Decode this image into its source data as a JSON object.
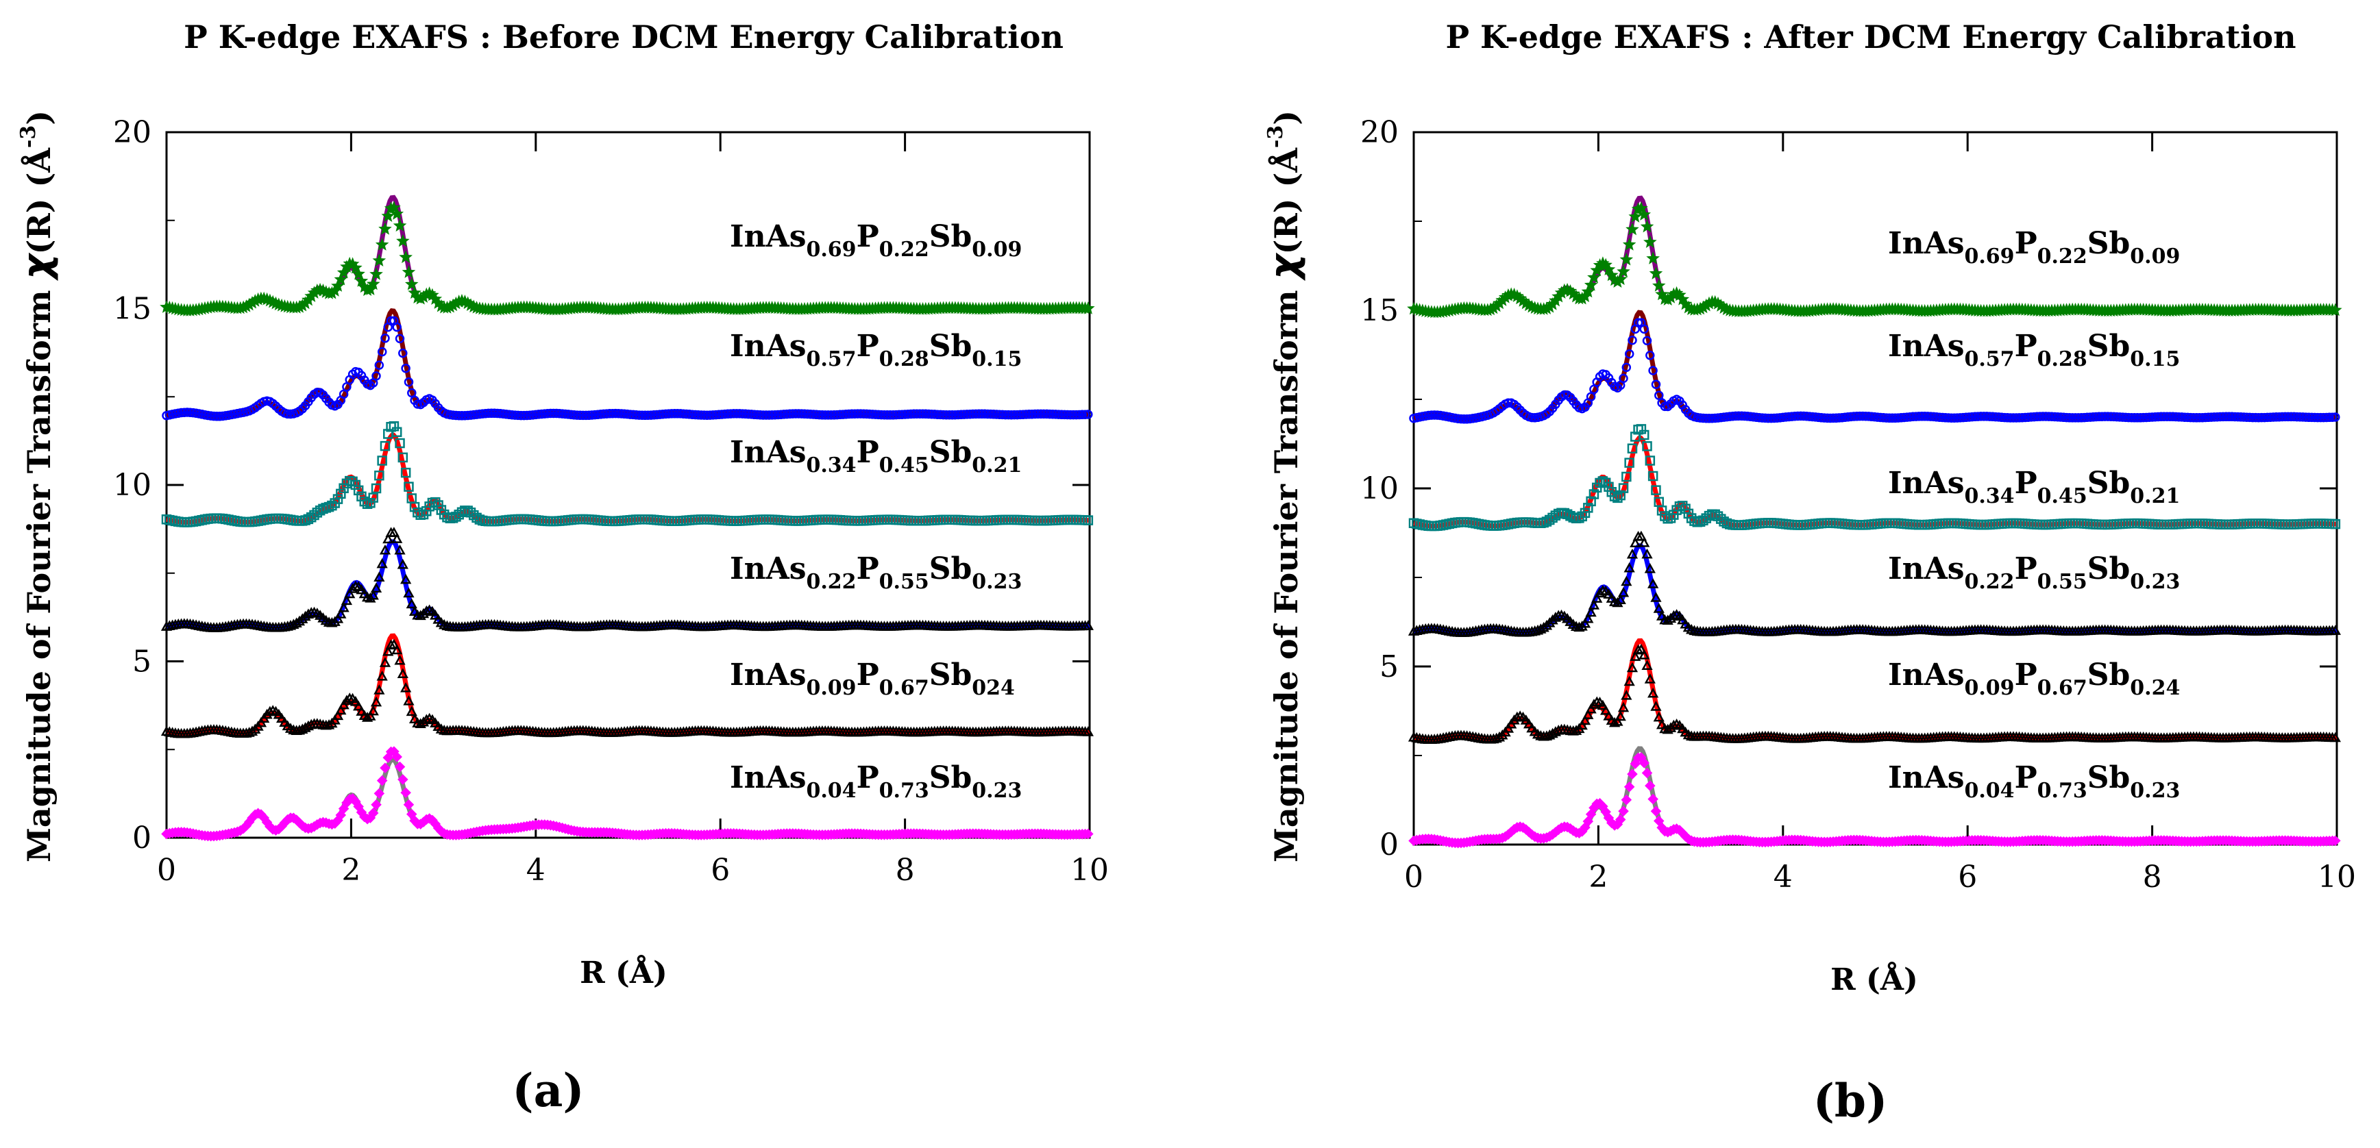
{
  "chart_data": [
    {
      "panel_id": "a",
      "type": "line",
      "title": "P K-edge EXAFS : Before DCM Energy Calibration",
      "xlabel": "R (Å)",
      "ylabel_prefix": "Magnitude of Fourier Transform ",
      "ylabel_chi": "χ",
      "ylabel_mid": "(R) (",
      "ylabel_unit": "Å",
      "ylabel_exp": "-3",
      "ylabel_suffix": ")",
      "panel_label": "(a)",
      "xlim": [
        0,
        10
      ],
      "ylim": [
        0,
        20
      ],
      "xticks": [
        0,
        2,
        4,
        6,
        8,
        10
      ],
      "yticks": [
        0,
        5,
        10,
        15,
        20
      ],
      "series": [
        {
          "name": "InAs0.69P0.22Sb0.09",
          "label": {
            "p1": "InAs",
            "s1": "0.69",
            "p2": "P",
            "s2": "0.22",
            "p3": "Sb",
            "s3": "0.09"
          },
          "offset": 15.0,
          "fit_color": "#800080",
          "data_color": "#008000",
          "marker": "star",
          "peaks": [
            {
              "r": 1.02,
              "a": 0.3,
              "w": 0.11
            },
            {
              "r": 1.65,
              "a": 0.55,
              "w": 0.1
            },
            {
              "r": 2.0,
              "a": 1.25,
              "w": 0.11
            },
            {
              "r": 2.45,
              "a": 2.85,
              "w": 0.12
            },
            {
              "r": 2.85,
              "a": 0.45,
              "w": 0.07
            },
            {
              "r": 3.2,
              "a": 0.18,
              "w": 0.07
            }
          ]
        },
        {
          "name": "InAs0.57P0.28Sb0.15",
          "label": {
            "p1": "InAs",
            "s1": "0.57",
            "p2": "P",
            "s2": "0.28",
            "p3": "Sb",
            "s3": "0.15"
          },
          "offset": 12.0,
          "fit_color": "#800000",
          "data_color": "#0000ff",
          "marker": "circle",
          "peaks": [
            {
              "r": 1.1,
              "a": 0.4,
              "w": 0.1
            },
            {
              "r": 1.65,
              "a": 0.6,
              "w": 0.1
            },
            {
              "r": 2.05,
              "a": 1.2,
              "w": 0.11
            },
            {
              "r": 2.45,
              "a": 2.7,
              "w": 0.12
            },
            {
              "r": 2.85,
              "a": 0.4,
              "w": 0.07
            }
          ]
        },
        {
          "name": "InAs0.34P0.45Sb0.21",
          "label": {
            "p1": "InAs",
            "s1": "0.34",
            "p2": "P",
            "s2": "0.45",
            "p3": "Sb",
            "s3": "0.21"
          },
          "offset": 9.0,
          "fit_color": "#ff0000",
          "data_color": "#008080",
          "marker": "square",
          "peaks": [
            {
              "r": 1.7,
              "a": 0.3,
              "w": 0.1
            },
            {
              "r": 2.0,
              "a": 1.1,
              "w": 0.11
            },
            {
              "r": 2.45,
              "a": 2.65,
              "w": 0.12
            },
            {
              "r": 2.9,
              "a": 0.55,
              "w": 0.07
            },
            {
              "r": 3.25,
              "a": 0.25,
              "w": 0.07
            }
          ]
        },
        {
          "name": "InAs0.22P0.55Sb0.23",
          "label": {
            "p1": "InAs",
            "s1": "0.22",
            "p2": "P",
            "s2": "0.55",
            "p3": "Sb",
            "s3": "0.23"
          },
          "offset": 6.0,
          "fit_color": "#0000ff",
          "data_color": "#000000",
          "marker": "triangle",
          "peaks": [
            {
              "r": 1.6,
              "a": 0.35,
              "w": 0.1
            },
            {
              "r": 2.05,
              "a": 1.1,
              "w": 0.11
            },
            {
              "r": 2.45,
              "a": 2.7,
              "w": 0.12
            },
            {
              "r": 2.85,
              "a": 0.4,
              "w": 0.07
            }
          ]
        },
        {
          "name": "InAs0.09P0.67Sb024",
          "label": {
            "p1": "InAs",
            "s1": "0.09",
            "p2": "P",
            "s2": "0.67",
            "p3": "Sb",
            "s3": "024"
          },
          "offset": 3.0,
          "fit_color": "#ff0000",
          "data_color": "#000000",
          "marker": "triangle",
          "peaks": [
            {
              "r": 1.15,
              "a": 0.55,
              "w": 0.1
            },
            {
              "r": 1.6,
              "a": 0.25,
              "w": 0.1
            },
            {
              "r": 2.0,
              "a": 0.95,
              "w": 0.11
            },
            {
              "r": 2.45,
              "a": 2.45,
              "w": 0.12
            },
            {
              "r": 2.85,
              "a": 0.4,
              "w": 0.07
            }
          ]
        },
        {
          "name": "InAs0.04P0.73Sb0.23",
          "label": {
            "p1": "InAs",
            "s1": "0.04",
            "p2": "P",
            "s2": "0.73",
            "p3": "Sb",
            "s3": "0.23"
          },
          "offset": 0.1,
          "fit_color": "#808080",
          "data_color": "#ff00ff",
          "marker": "diamond",
          "peaks": [
            {
              "r": 1.0,
              "a": 0.6,
              "w": 0.09
            },
            {
              "r": 1.35,
              "a": 0.45,
              "w": 0.09
            },
            {
              "r": 1.7,
              "a": 0.35,
              "w": 0.09
            },
            {
              "r": 2.0,
              "a": 1.0,
              "w": 0.1
            },
            {
              "r": 2.45,
              "a": 2.4,
              "w": 0.12
            },
            {
              "r": 2.85,
              "a": 0.4,
              "w": 0.07
            },
            {
              "r": 4.0,
              "a": 0.25,
              "w": 0.35
            }
          ]
        }
      ]
    },
    {
      "panel_id": "b",
      "type": "line",
      "title": "P K-edge EXAFS : After DCM Energy Calibration",
      "xlabel": "R (Å)",
      "ylabel_prefix": "Magnitude of Fourier Transform ",
      "ylabel_chi": "χ",
      "ylabel_mid": "(R) (",
      "ylabel_unit": "Å",
      "ylabel_exp": "-3",
      "ylabel_suffix": ")",
      "panel_label": "(b)",
      "xlim": [
        0,
        10
      ],
      "ylim": [
        0,
        20
      ],
      "xticks": [
        0,
        2,
        4,
        6,
        8,
        10
      ],
      "yticks": [
        0,
        5,
        10,
        15,
        20
      ],
      "series": [
        {
          "name": "InAs0.69P0.22Sb0.09",
          "label": {
            "p1": "InAs",
            "s1": "0.69",
            "p2": "P",
            "s2": "0.22",
            "p3": "Sb",
            "s3": "0.09"
          },
          "offset": 15.0,
          "fit_color": "#800080",
          "data_color": "#008000",
          "marker": "star",
          "peaks": [
            {
              "r": 1.05,
              "a": 0.45,
              "w": 0.11
            },
            {
              "r": 1.65,
              "a": 0.6,
              "w": 0.1
            },
            {
              "r": 2.05,
              "a": 1.3,
              "w": 0.11
            },
            {
              "r": 2.45,
              "a": 2.85,
              "w": 0.12
            },
            {
              "r": 2.85,
              "a": 0.5,
              "w": 0.07
            },
            {
              "r": 3.25,
              "a": 0.2,
              "w": 0.07
            }
          ]
        },
        {
          "name": "InAs0.57P0.28Sb0.15",
          "label": {
            "p1": "InAs",
            "s1": "0.57",
            "p2": "P",
            "s2": "0.28",
            "p3": "Sb",
            "s3": "0.15"
          },
          "offset": 12.0,
          "fit_color": "#800000",
          "data_color": "#0000ff",
          "marker": "circle",
          "peaks": [
            {
              "r": 1.05,
              "a": 0.4,
              "w": 0.1
            },
            {
              "r": 1.65,
              "a": 0.6,
              "w": 0.1
            },
            {
              "r": 2.05,
              "a": 1.2,
              "w": 0.11
            },
            {
              "r": 2.45,
              "a": 2.7,
              "w": 0.12
            },
            {
              "r": 2.85,
              "a": 0.45,
              "w": 0.07
            }
          ]
        },
        {
          "name": "InAs0.34P0.45Sb0.21",
          "label": {
            "p1": "InAs",
            "s1": "0.34",
            "p2": "P",
            "s2": "0.45",
            "p3": "Sb",
            "s3": "0.21"
          },
          "offset": 9.0,
          "fit_color": "#ff0000",
          "data_color": "#008080",
          "marker": "square",
          "peaks": [
            {
              "r": 1.6,
              "a": 0.35,
              "w": 0.1
            },
            {
              "r": 2.05,
              "a": 1.2,
              "w": 0.11
            },
            {
              "r": 2.45,
              "a": 2.65,
              "w": 0.12
            },
            {
              "r": 2.9,
              "a": 0.55,
              "w": 0.07
            },
            {
              "r": 3.25,
              "a": 0.25,
              "w": 0.07
            }
          ]
        },
        {
          "name": "InAs0.22P0.55Sb0.23",
          "label": {
            "p1": "InAs",
            "s1": "0.22",
            "p2": "P",
            "s2": "0.55",
            "p3": "Sb",
            "s3": "0.23"
          },
          "offset": 6.0,
          "fit_color": "#0000ff",
          "data_color": "#000000",
          "marker": "triangle",
          "peaks": [
            {
              "r": 1.6,
              "a": 0.4,
              "w": 0.1
            },
            {
              "r": 2.05,
              "a": 1.1,
              "w": 0.11
            },
            {
              "r": 2.45,
              "a": 2.7,
              "w": 0.12
            },
            {
              "r": 2.85,
              "a": 0.4,
              "w": 0.07
            }
          ]
        },
        {
          "name": "InAs0.09P0.67Sb0.24",
          "label": {
            "p1": "InAs",
            "s1": "0.09",
            "p2": "P",
            "s2": "0.67",
            "p3": "Sb",
            "s3": "0.24"
          },
          "offset": 3.0,
          "fit_color": "#ff0000",
          "data_color": "#000000",
          "marker": "triangle",
          "peaks": [
            {
              "r": 1.15,
              "a": 0.55,
              "w": 0.1
            },
            {
              "r": 1.6,
              "a": 0.25,
              "w": 0.1
            },
            {
              "r": 2.0,
              "a": 1.0,
              "w": 0.11
            },
            {
              "r": 2.45,
              "a": 2.45,
              "w": 0.12
            },
            {
              "r": 2.85,
              "a": 0.4,
              "w": 0.07
            }
          ]
        },
        {
          "name": "InAs0.04P0.73Sb0.23",
          "label": {
            "p1": "InAs",
            "s1": "0.04",
            "p2": "P",
            "s2": "0.73",
            "p3": "Sb",
            "s3": "0.23"
          },
          "offset": 0.1,
          "fit_color": "#808080",
          "data_color": "#ff00ff",
          "marker": "diamond",
          "peaks": [
            {
              "r": 1.15,
              "a": 0.45,
              "w": 0.1
            },
            {
              "r": 1.65,
              "a": 0.4,
              "w": 0.1
            },
            {
              "r": 2.0,
              "a": 1.05,
              "w": 0.1
            },
            {
              "r": 2.45,
              "a": 2.4,
              "w": 0.12
            },
            {
              "r": 2.85,
              "a": 0.3,
              "w": 0.07
            }
          ]
        }
      ]
    }
  ]
}
